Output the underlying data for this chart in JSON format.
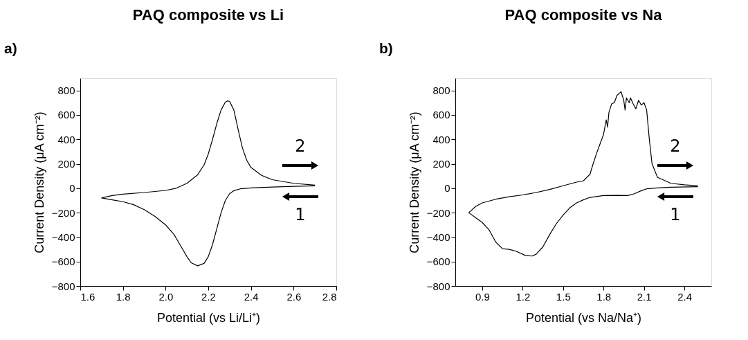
{
  "chart_data": [
    {
      "type": "line",
      "title": "PAQ composite vs Li",
      "xlabel": "Potential (vs Li/Li⁺)",
      "ylabel": "Current Density (μA cm⁻²)",
      "xlim": [
        1.6,
        2.8
      ],
      "xticks": [
        1.6,
        1.8,
        {
          "value": 2.0,
          "label": "2.0"
        },
        2.2,
        2.4,
        2.6,
        2.8
      ],
      "ylim": [
        -800,
        900
      ],
      "yticks": [
        -800,
        -600,
        -400,
        -200,
        0,
        200,
        400,
        600,
        800
      ],
      "grid": false,
      "marker": "none",
      "line_style": "solid",
      "series": [
        {
          "color": "#000000",
          "x": [
            2.7,
            2.6,
            2.5,
            2.4,
            2.35,
            2.32,
            2.3,
            2.28,
            2.26,
            2.24,
            2.22,
            2.2,
            2.18,
            2.15,
            2.12,
            2.1,
            2.07,
            2.04,
            2.0,
            1.95,
            1.9,
            1.85,
            1.8,
            1.75,
            1.7,
            1.75,
            1.8,
            1.9,
            2.0,
            2.05,
            2.1,
            2.15,
            2.18,
            2.2,
            2.22,
            2.24,
            2.26,
            2.28,
            2.29,
            2.3,
            2.32,
            2.34,
            2.36,
            2.38,
            2.4,
            2.45,
            2.5,
            2.6,
            2.7
          ],
          "values": [
            20,
            15,
            10,
            3,
            -5,
            -20,
            -45,
            -100,
            -200,
            -330,
            -460,
            -560,
            -615,
            -635,
            -610,
            -560,
            -470,
            -380,
            -300,
            -230,
            -175,
            -135,
            -110,
            -95,
            -80,
            -60,
            -48,
            -35,
            -18,
            0,
            40,
            110,
            190,
            280,
            400,
            530,
            640,
            705,
            715,
            710,
            640,
            480,
            330,
            230,
            170,
            105,
            70,
            40,
            25
          ]
        }
      ],
      "annotations": [
        "a)",
        "2",
        "1"
      ]
    },
    {
      "type": "line",
      "title": "PAQ composite vs Na",
      "xlabel": "Potential (vs Na/Na⁺)",
      "ylabel": "Current Density (μA cm⁻²)",
      "xlim": [
        0.7,
        2.6
      ],
      "xticks": [
        0.9,
        1.2,
        1.5,
        1.8,
        2.1,
        2.4
      ],
      "ylim": [
        -800,
        900
      ],
      "yticks": [
        -800,
        -600,
        -400,
        -200,
        0,
        200,
        400,
        600,
        800
      ],
      "grid": false,
      "marker": "none",
      "line_style": "solid",
      "series": [
        {
          "color": "#000000",
          "x": [
            2.5,
            2.3,
            2.2,
            2.12,
            2.08,
            2.03,
            1.98,
            1.9,
            1.8,
            1.7,
            1.65,
            1.6,
            1.55,
            1.5,
            1.45,
            1.4,
            1.35,
            1.3,
            1.27,
            1.22,
            1.15,
            1.1,
            1.05,
            1.0,
            0.95,
            0.9,
            0.85,
            0.8,
            0.85,
            0.9,
            1.0,
            1.1,
            1.2,
            1.3,
            1.4,
            1.5,
            1.6,
            1.65,
            1.7,
            1.72,
            1.75,
            1.77,
            1.8,
            1.82,
            1.83,
            1.84,
            1.86,
            1.88,
            1.9,
            1.93,
            1.95,
            1.96,
            1.97,
            1.99,
            2.0,
            2.02,
            2.04,
            2.06,
            2.08,
            2.1,
            2.12,
            2.14,
            2.16,
            2.2,
            2.3,
            2.4,
            2.5
          ],
          "values": [
            12,
            8,
            3,
            -5,
            -20,
            -45,
            -60,
            -58,
            -60,
            -75,
            -95,
            -120,
            -160,
            -220,
            -290,
            -380,
            -480,
            -540,
            -555,
            -550,
            -515,
            -500,
            -495,
            -440,
            -340,
            -280,
            -240,
            -200,
            -150,
            -120,
            -90,
            -70,
            -55,
            -35,
            -10,
            20,
            50,
            60,
            115,
            190,
            290,
            350,
            440,
            560,
            500,
            620,
            690,
            700,
            760,
            790,
            720,
            640,
            740,
            700,
            740,
            690,
            650,
            720,
            680,
            700,
            640,
            400,
            200,
            90,
            40,
            28,
            20
          ]
        }
      ],
      "annotations": [
        "b)",
        "2",
        "1"
      ]
    }
  ]
}
